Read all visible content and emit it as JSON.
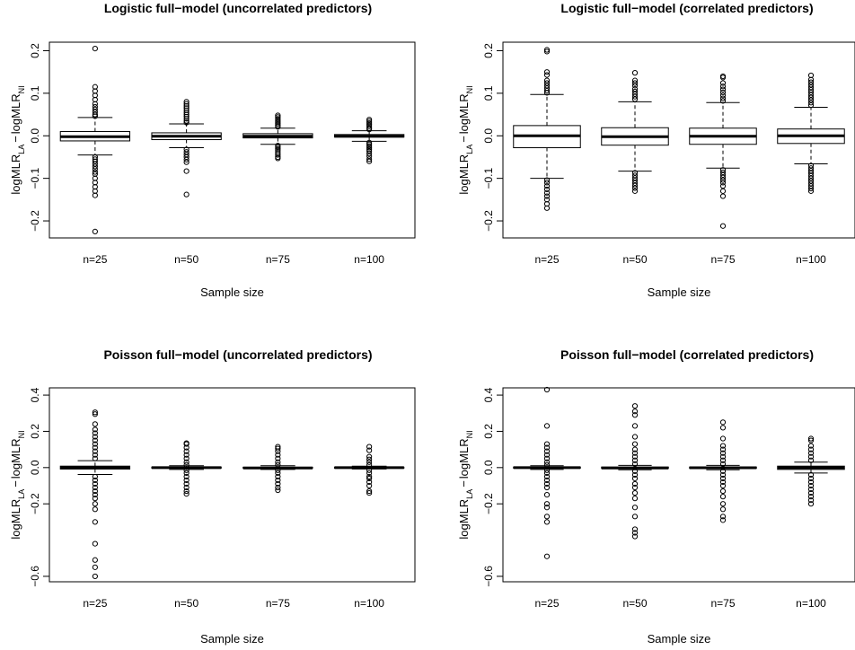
{
  "chart_data": [
    {
      "type": "box",
      "title": "Logistic full−model (uncorrelated predictors)",
      "xlabel": "Sample size",
      "ylabel_main": "logMLR",
      "ylabel_sub1": "LA",
      "ylabel_sub2": "NI",
      "ylabel_minus": "−",
      "categories": [
        "n=25",
        "n=50",
        "n=75",
        "n=100"
      ],
      "ylim": [
        -0.24,
        0.22
      ],
      "yticks": [
        -0.2,
        -0.1,
        0.0,
        0.1,
        0.2
      ],
      "ytick_labels": [
        "−0.2",
        "−0.1",
        "0.0",
        "0.1",
        "0.2"
      ],
      "boxes": [
        {
          "q1": -0.012,
          "median": -0.002,
          "q3": 0.01,
          "whisker_low": -0.045,
          "whisker_high": 0.043,
          "outliers": [
            0.205,
            0.115,
            0.105,
            0.095,
            0.085,
            0.075,
            0.068,
            0.062,
            0.056,
            0.05,
            0.046,
            -0.05,
            -0.055,
            -0.06,
            -0.066,
            -0.072,
            -0.078,
            -0.085,
            -0.09,
            -0.1,
            -0.11,
            -0.12,
            -0.13,
            -0.14,
            -0.225
          ]
        },
        {
          "q1": -0.009,
          "median": -0.001,
          "q3": 0.007,
          "whisker_low": -0.028,
          "whisker_high": 0.028,
          "outliers": [
            0.08,
            0.075,
            0.07,
            0.065,
            0.06,
            0.055,
            0.05,
            0.045,
            0.04,
            0.035,
            0.031,
            -0.032,
            -0.038,
            -0.044,
            -0.05,
            -0.056,
            -0.062,
            -0.083,
            -0.138
          ]
        },
        {
          "q1": -0.005,
          "median": -0.001,
          "q3": 0.005,
          "whisker_low": -0.02,
          "whisker_high": 0.018,
          "outliers": [
            0.048,
            0.044,
            0.04,
            0.036,
            0.032,
            0.028,
            0.024,
            0.021,
            -0.023,
            -0.027,
            -0.031,
            -0.035,
            -0.04,
            -0.045,
            -0.05,
            -0.053
          ]
        },
        {
          "q1": -0.003,
          "median": -0.001,
          "q3": 0.003,
          "whisker_low": -0.013,
          "whisker_high": 0.012,
          "outliers": [
            0.038,
            0.034,
            0.03,
            0.026,
            0.022,
            0.018,
            0.015,
            -0.016,
            -0.02,
            -0.024,
            -0.028,
            -0.032,
            -0.036,
            -0.042,
            -0.048,
            -0.055,
            -0.06
          ]
        }
      ]
    },
    {
      "type": "box",
      "title": "Logistic full−model (correlated predictors)",
      "xlabel": "Sample size",
      "ylabel_main": "logMLR",
      "ylabel_sub1": "LA",
      "ylabel_sub2": "NI",
      "ylabel_minus": "−",
      "categories": [
        "n=25",
        "n=50",
        "n=75",
        "n=100"
      ],
      "ylim": [
        -0.24,
        0.22
      ],
      "yticks": [
        -0.2,
        -0.1,
        0.0,
        0.1,
        0.2
      ],
      "ytick_labels": [
        "−0.2",
        "−0.1",
        "0.0",
        "0.1",
        "0.2"
      ],
      "boxes": [
        {
          "q1": -0.028,
          "median": 0.0,
          "q3": 0.024,
          "whisker_low": -0.1,
          "whisker_high": 0.097,
          "outliers": [
            0.202,
            0.198,
            0.15,
            0.143,
            0.13,
            0.124,
            0.118,
            0.112,
            0.106,
            0.101,
            -0.104,
            -0.11,
            -0.118,
            -0.126,
            -0.134,
            -0.142,
            -0.15,
            -0.16,
            -0.17
          ]
        },
        {
          "q1": -0.022,
          "median": -0.002,
          "q3": 0.019,
          "whisker_low": -0.083,
          "whisker_high": 0.08,
          "outliers": [
            0.148,
            0.13,
            0.124,
            0.118,
            0.11,
            0.104,
            0.098,
            0.092,
            0.086,
            -0.087,
            -0.093,
            -0.099,
            -0.105,
            -0.111,
            -0.117,
            -0.123,
            -0.13
          ]
        },
        {
          "q1": -0.02,
          "median": -0.001,
          "q3": 0.018,
          "whisker_low": -0.076,
          "whisker_high": 0.078,
          "outliers": [
            0.14,
            0.137,
            0.124,
            0.116,
            0.109,
            0.102,
            0.095,
            0.088,
            0.082,
            -0.08,
            -0.086,
            -0.092,
            -0.098,
            -0.104,
            -0.11,
            -0.118,
            -0.13,
            -0.142,
            -0.212
          ]
        },
        {
          "q1": -0.018,
          "median": 0.0,
          "q3": 0.016,
          "whisker_low": -0.066,
          "whisker_high": 0.067,
          "outliers": [
            0.142,
            0.132,
            0.126,
            0.12,
            0.114,
            0.108,
            0.102,
            0.096,
            0.09,
            0.084,
            0.078,
            0.072,
            -0.07,
            -0.076,
            -0.082,
            -0.088,
            -0.094,
            -0.1,
            -0.106,
            -0.112,
            -0.118,
            -0.124,
            -0.13
          ]
        }
      ]
    },
    {
      "type": "box",
      "title": "Poisson full−model (uncorrelated predictors)",
      "xlabel": "Sample size",
      "ylabel_main": "logMLR",
      "ylabel_sub1": "LA",
      "ylabel_sub2": "NI",
      "ylabel_minus": "−",
      "categories": [
        "n=25",
        "n=50",
        "n=75",
        "n=100"
      ],
      "ylim": [
        -0.63,
        0.44
      ],
      "yticks": [
        -0.6,
        -0.2,
        0.0,
        0.2,
        0.4
      ],
      "ytick_labels": [
        "−0.6",
        "−0.2",
        "0.0",
        "0.2",
        "0.4"
      ],
      "boxes": [
        {
          "q1": -0.008,
          "median": 0.0,
          "q3": 0.008,
          "whisker_low": -0.038,
          "whisker_high": 0.038,
          "outliers": [
            0.305,
            0.295,
            0.24,
            0.21,
            0.19,
            0.17,
            0.15,
            0.13,
            0.11,
            0.09,
            0.07,
            0.05,
            -0.05,
            -0.07,
            -0.09,
            -0.11,
            -0.13,
            -0.15,
            -0.17,
            -0.2,
            -0.23,
            -0.3,
            -0.42,
            -0.51,
            -0.55,
            -0.6
          ]
        },
        {
          "q1": -0.003,
          "median": 0.0,
          "q3": 0.003,
          "whisker_low": -0.01,
          "whisker_high": 0.01,
          "outliers": [
            0.135,
            0.13,
            0.11,
            0.09,
            0.07,
            0.05,
            0.03,
            0.015,
            -0.015,
            -0.03,
            -0.05,
            -0.07,
            -0.09,
            -0.11,
            -0.13,
            -0.145
          ]
        },
        {
          "q1": -0.003,
          "median": -0.002,
          "q3": 0.002,
          "whisker_low": -0.01,
          "whisker_high": 0.01,
          "outliers": [
            0.115,
            0.105,
            0.09,
            0.07,
            0.05,
            0.03,
            0.015,
            -0.015,
            -0.03,
            -0.05,
            -0.07,
            -0.09,
            -0.11,
            -0.125
          ]
        },
        {
          "q1": -0.002,
          "median": 0.0,
          "q3": 0.002,
          "whisker_low": -0.008,
          "whisker_high": 0.008,
          "outliers": [
            0.115,
            0.095,
            0.06,
            0.045,
            0.03,
            0.015,
            -0.015,
            -0.03,
            -0.05,
            -0.06,
            -0.08,
            -0.1,
            -0.13,
            -0.14
          ]
        }
      ]
    },
    {
      "type": "box",
      "title": "Poisson full−model (correlated predictors)",
      "xlabel": "Sample size",
      "ylabel_main": "logMLR",
      "ylabel_sub1": "LA",
      "ylabel_sub2": "NI",
      "ylabel_minus": "−",
      "categories": [
        "n=25",
        "n=50",
        "n=75",
        "n=100"
      ],
      "ylim": [
        -0.63,
        0.44
      ],
      "yticks": [
        -0.6,
        -0.2,
        0.0,
        0.2,
        0.4
      ],
      "ytick_labels": [
        "−0.6",
        "−0.2",
        "0.0",
        "0.2",
        "0.4"
      ],
      "boxes": [
        {
          "q1": -0.003,
          "median": 0.0,
          "q3": 0.003,
          "whisker_low": -0.01,
          "whisker_high": 0.01,
          "outliers": [
            0.43,
            0.23,
            0.13,
            0.11,
            0.09,
            0.07,
            0.05,
            0.03,
            0.015,
            -0.015,
            -0.03,
            -0.05,
            -0.07,
            -0.09,
            -0.11,
            -0.15,
            -0.2,
            -0.22,
            -0.27,
            -0.3,
            -0.49
          ]
        },
        {
          "q1": -0.004,
          "median": -0.002,
          "q3": 0.003,
          "whisker_low": -0.012,
          "whisker_high": 0.012,
          "outliers": [
            0.34,
            0.31,
            0.29,
            0.23,
            0.17,
            0.13,
            0.1,
            0.08,
            0.06,
            0.04,
            0.02,
            -0.02,
            -0.04,
            -0.06,
            -0.09,
            -0.11,
            -0.14,
            -0.17,
            -0.22,
            -0.27,
            -0.34,
            -0.36,
            -0.38
          ]
        },
        {
          "q1": -0.004,
          "median": -0.001,
          "q3": 0.003,
          "whisker_low": -0.012,
          "whisker_high": 0.012,
          "outliers": [
            0.25,
            0.22,
            0.16,
            0.12,
            0.1,
            0.08,
            0.06,
            0.04,
            0.02,
            -0.02,
            -0.04,
            -0.06,
            -0.08,
            -0.1,
            -0.13,
            -0.16,
            -0.2,
            -0.23,
            -0.27,
            -0.29
          ]
        },
        {
          "q1": -0.01,
          "median": 0.0,
          "q3": 0.008,
          "whisker_low": -0.03,
          "whisker_high": 0.03,
          "outliers": [
            0.16,
            0.15,
            0.12,
            0.1,
            0.08,
            0.06,
            0.04,
            -0.04,
            -0.06,
            -0.08,
            -0.1,
            -0.12,
            -0.14,
            -0.16,
            -0.18,
            -0.2
          ]
        }
      ]
    }
  ]
}
